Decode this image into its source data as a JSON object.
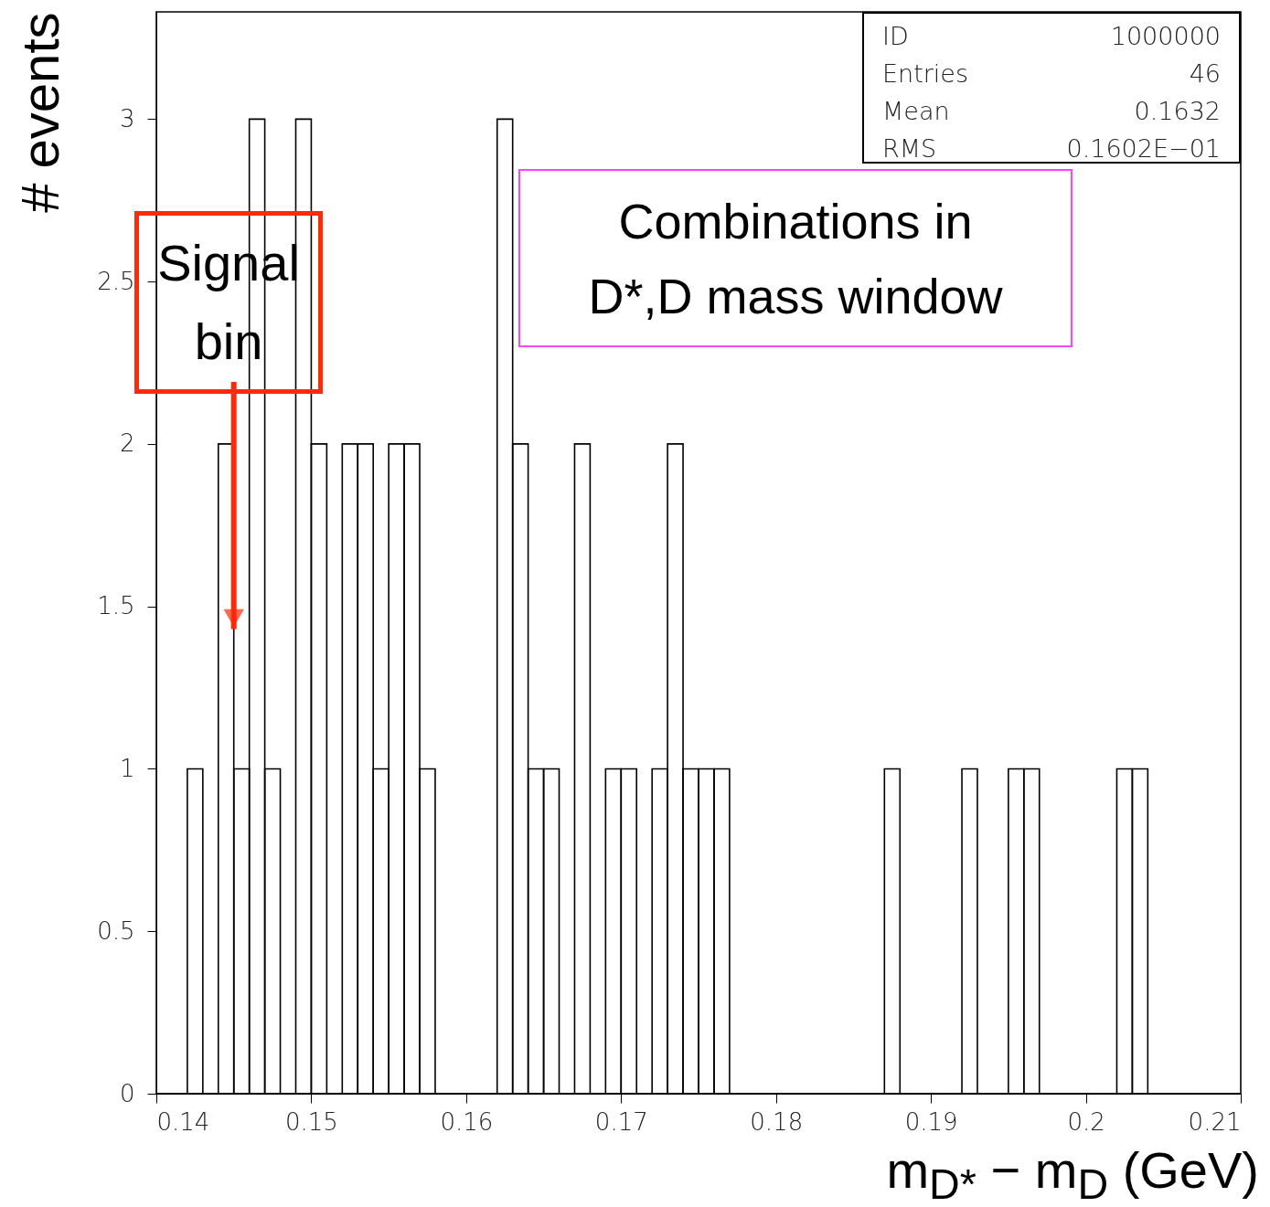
{
  "chart_data": {
    "type": "histogram",
    "xlabel": "m$_{D*}$ − m$_{D}$ (GeV)",
    "ylabel": "# events",
    "color": "#000000",
    "bins": [
      0.14,
      0.141,
      0.142,
      0.143,
      0.144,
      0.145,
      0.146,
      0.147,
      0.148,
      0.149,
      0.15,
      0.151,
      0.152,
      0.153,
      0.154,
      0.155,
      0.156,
      0.157,
      0.158,
      0.159,
      0.16,
      0.161,
      0.162,
      0.163,
      0.164,
      0.165,
      0.166,
      0.167,
      0.168,
      0.169,
      0.17,
      0.171,
      0.172,
      0.173,
      0.174,
      0.175,
      0.176,
      0.177,
      0.178,
      0.179,
      0.18,
      0.181,
      0.182,
      0.183,
      0.184,
      0.185,
      0.186,
      0.187,
      0.188,
      0.189,
      0.19,
      0.191,
      0.192,
      0.193,
      0.194,
      0.195,
      0.196,
      0.197,
      0.198,
      0.199,
      0.2,
      0.201,
      0.202,
      0.203,
      0.204,
      0.205,
      0.206,
      0.207,
      0.208,
      0.209,
      0.21
    ],
    "values": [
      0,
      0,
      1,
      0,
      2,
      1,
      3,
      1,
      0,
      3,
      2,
      0,
      2,
      2,
      1,
      2,
      2,
      1,
      0,
      0,
      0,
      0,
      3,
      2,
      1,
      1,
      0,
      2,
      0,
      1,
      1,
      0,
      1,
      2,
      1,
      1,
      1,
      0,
      0,
      0,
      0,
      0,
      0,
      0,
      0,
      0,
      0,
      1,
      0,
      0,
      0,
      0,
      1,
      0,
      0,
      1,
      1,
      0,
      0,
      0,
      0,
      0,
      1,
      1,
      0,
      0,
      0,
      0,
      0,
      0
    ],
    "xlim": [
      0.14,
      0.21
    ],
    "xticks": [
      0.14,
      0.15,
      0.16,
      0.17,
      0.18,
      0.19,
      0.2,
      0.21
    ],
    "ylim": [
      0,
      3.33
    ],
    "yticks": [
      0,
      0.5,
      1,
      1.5,
      2,
      2.5,
      3
    ],
    "grid": false,
    "annotations": [
      "ID 1000000",
      "Entries 46",
      "Mean 0.1632",
      "RMS 0.1602E−01",
      "Combinations in D*,D mass window",
      {
        "text": "Signal bin",
        "x": 0.145,
        "y": 1.43
      }
    ]
  }
}
